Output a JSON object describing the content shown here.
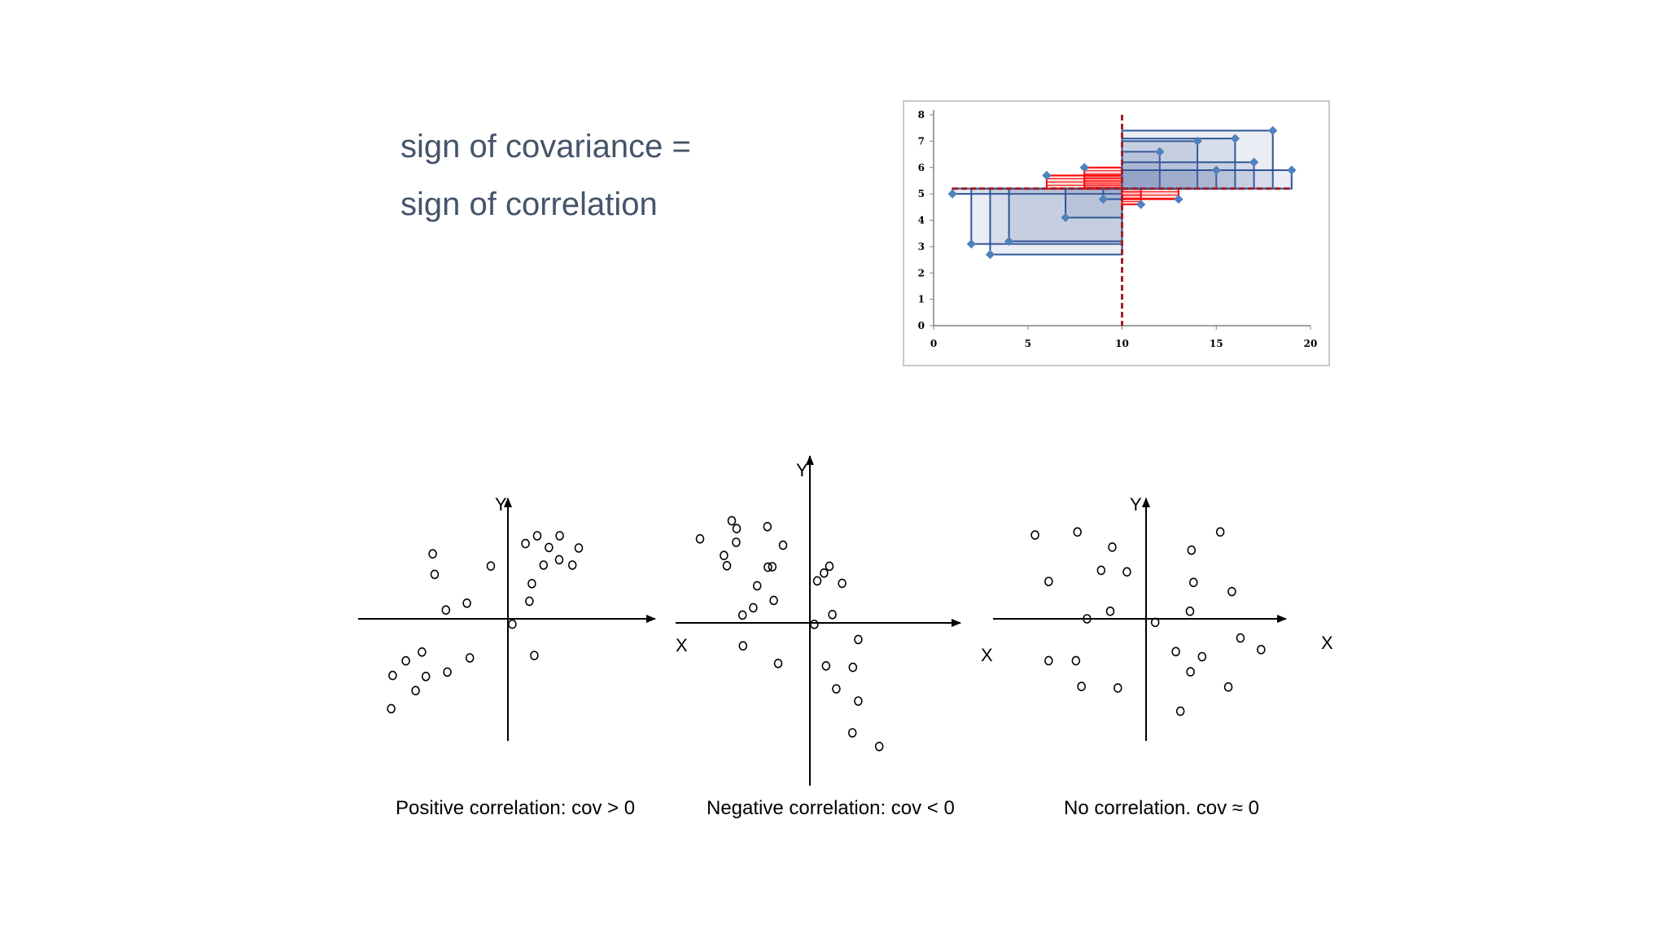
{
  "title": {
    "line1": "sign of covariance =",
    "line2": "sign of correlation"
  },
  "chart_data": [
    {
      "type": "scatter",
      "title": "",
      "xlabel": "",
      "ylabel": "",
      "xlim": [
        0,
        20
      ],
      "ylim": [
        0,
        8
      ],
      "xticks": [
        "0",
        "5",
        "10",
        "15",
        "20"
      ],
      "yticks": [
        "0",
        "1",
        "2",
        "3",
        "4",
        "5",
        "6",
        "7",
        "8"
      ],
      "mean_x": 10,
      "mean_y": 5.2,
      "points": [
        [
          1,
          5.0
        ],
        [
          2,
          3.1
        ],
        [
          3,
          2.7
        ],
        [
          4,
          3.2
        ],
        [
          6,
          5.7
        ],
        [
          7,
          4.1
        ],
        [
          8,
          6.0
        ],
        [
          9,
          4.8
        ],
        [
          11,
          4.6
        ],
        [
          12,
          6.6
        ],
        [
          13,
          4.8
        ],
        [
          14,
          7.0
        ],
        [
          15,
          5.9
        ],
        [
          16,
          7.1
        ],
        [
          17,
          6.2
        ],
        [
          18,
          7.4
        ],
        [
          19,
          5.9
        ]
      ],
      "grid": false,
      "colors": {
        "points": "#4f81bd",
        "positive_area": "#4f6fa8",
        "negative_area": "#ff0000",
        "mean_line": "#a0202a"
      }
    }
  ],
  "diagrams": [
    {
      "xlabel": "X",
      "ylabel": "Y",
      "caption": "Positive correlation: cov > 0",
      "points": [
        [
          -1.54,
          1.33
        ],
        [
          -1.5,
          0.91
        ],
        [
          -0.35,
          1.08
        ],
        [
          0.36,
          1.54
        ],
        [
          1.06,
          1.7
        ],
        [
          1.45,
          1.45
        ],
        [
          1.32,
          1.1
        ],
        [
          0.73,
          1.1
        ],
        [
          0.49,
          0.72
        ],
        [
          0.44,
          0.36
        ],
        [
          -0.84,
          0.32
        ],
        [
          -1.27,
          0.18
        ],
        [
          -2.09,
          -0.86
        ],
        [
          -1.76,
          -0.68
        ],
        [
          -1.68,
          -1.18
        ],
        [
          -1.89,
          -1.47
        ],
        [
          -0.78,
          -0.8
        ],
        [
          0.09,
          -0.11
        ],
        [
          0.84,
          1.46
        ],
        [
          1.05,
          1.21
        ],
        [
          0.54,
          -0.75
        ],
        [
          -2.39,
          -1.84
        ],
        [
          0.6,
          1.7
        ],
        [
          -2.36,
          -1.16
        ],
        [
          -1.24,
          -1.09
        ]
      ]
    },
    {
      "xlabel": "X",
      "ylabel": "Y",
      "caption": "Negative correlation: cov < 0",
      "points": [
        [
          -1.6,
          2.09
        ],
        [
          -1.5,
          1.93
        ],
        [
          -0.87,
          1.97
        ],
        [
          -2.25,
          1.72
        ],
        [
          -1.51,
          1.65
        ],
        [
          -1.76,
          1.38
        ],
        [
          -0.55,
          1.59
        ],
        [
          -1.7,
          1.17
        ],
        [
          -0.86,
          1.14
        ],
        [
          0.29,
          1.02
        ],
        [
          0.15,
          0.86
        ],
        [
          0.66,
          0.81
        ],
        [
          -0.74,
          0.46
        ],
        [
          -1.16,
          0.31
        ],
        [
          -1.08,
          0.76
        ],
        [
          -0.77,
          1.15
        ],
        [
          0.4,
          1.16
        ],
        [
          -1.38,
          0.16
        ],
        [
          0.09,
          -0.03
        ],
        [
          0.99,
          -0.34
        ],
        [
          -1.37,
          -0.47
        ],
        [
          -0.65,
          -0.83
        ],
        [
          0.33,
          -0.88
        ],
        [
          0.54,
          -1.35
        ],
        [
          0.99,
          -1.6
        ],
        [
          0.88,
          -0.91
        ],
        [
          0.46,
          0.17
        ],
        [
          0.87,
          -2.25
        ],
        [
          1.42,
          -2.53
        ]
      ]
    },
    {
      "xlabel": "X",
      "ylabel": "Y",
      "caption": "No correlation. cov ≈ 0",
      "points": [
        [
          -2.2,
          1.66
        ],
        [
          -1.36,
          1.72
        ],
        [
          -0.67,
          1.42
        ],
        [
          0.9,
          1.36
        ],
        [
          1.47,
          1.72
        ],
        [
          -1.93,
          0.74
        ],
        [
          -0.89,
          0.96
        ],
        [
          -0.38,
          0.93
        ],
        [
          0.94,
          0.72
        ],
        [
          1.7,
          0.54
        ],
        [
          -0.71,
          0.15
        ],
        [
          0.87,
          0.15
        ],
        [
          -1.17,
          -0.0
        ],
        [
          0.18,
          -0.07
        ],
        [
          1.87,
          -0.38
        ],
        [
          1.11,
          -0.75
        ],
        [
          0.59,
          -0.65
        ],
        [
          2.28,
          -0.61
        ],
        [
          -1.93,
          -0.83
        ],
        [
          -1.39,
          -0.83
        ],
        [
          0.88,
          -1.05
        ],
        [
          1.63,
          -1.35
        ],
        [
          -1.28,
          -1.34
        ],
        [
          -0.56,
          -1.37
        ],
        [
          0.68,
          -1.83
        ]
      ]
    }
  ]
}
